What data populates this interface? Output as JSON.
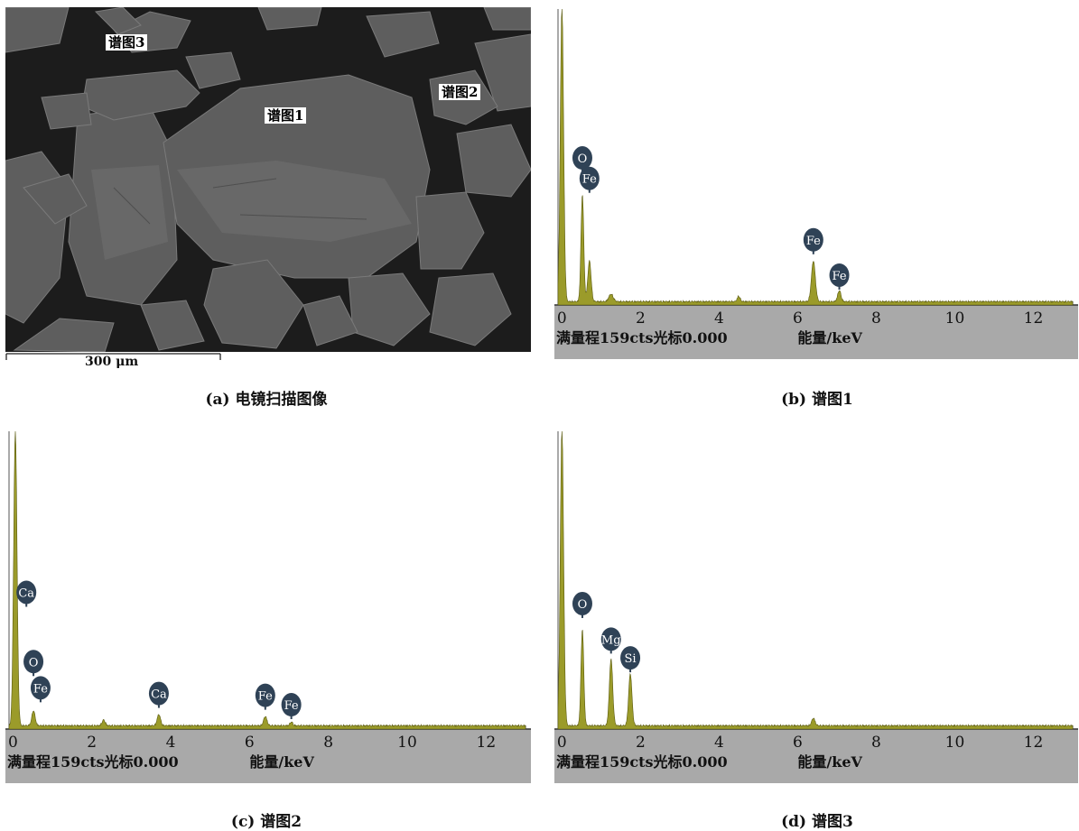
{
  "sem_panel": {
    "caption": "(a) 电镜扫描图像",
    "labels": [
      "谱图3",
      "谱图2",
      "谱图1"
    ],
    "scale_bar": "300 μm"
  },
  "chart_data": [
    {
      "type": "line",
      "caption": "(b) 谱图1",
      "footer_left": "满量程159cts光标0.000",
      "xlabel": "能量/keV",
      "xticks": [
        0,
        2,
        4,
        6,
        8,
        10,
        12
      ],
      "xlim": [
        -0.1,
        13.0
      ],
      "ylim": [
        0,
        159
      ],
      "peaks": [
        {
          "x": 0.0,
          "y": 159,
          "w": 0.06
        },
        {
          "x": 0.52,
          "y": 58,
          "w": 0.05
        },
        {
          "x": 0.7,
          "y": 22,
          "w": 0.06
        },
        {
          "x": 1.25,
          "y": 4,
          "w": 0.08
        },
        {
          "x": 4.5,
          "y": 3,
          "w": 0.05
        },
        {
          "x": 6.4,
          "y": 22,
          "w": 0.07
        },
        {
          "x": 7.06,
          "y": 6,
          "w": 0.06
        }
      ],
      "element_labels": [
        {
          "text": "O",
          "x": 0.52,
          "y": 79
        },
        {
          "text": "Fe",
          "x": 0.7,
          "y": 68
        },
        {
          "text": "Fe",
          "x": 6.4,
          "y": 35
        },
        {
          "text": "Fe",
          "x": 7.06,
          "y": 16
        }
      ],
      "color": "#9b9b2a"
    },
    {
      "type": "line",
      "caption": "(c) 谱图2",
      "footer_left": "满量程159cts光标0.000",
      "xlabel": "能量/keV",
      "xticks": [
        0,
        2,
        4,
        6,
        8,
        10,
        12
      ],
      "xlim": [
        -0.1,
        13.0
      ],
      "ylim": [
        0,
        159
      ],
      "peaks": [
        {
          "x": 0.06,
          "y": 159,
          "w": 0.06
        },
        {
          "x": 0.52,
          "y": 8,
          "w": 0.06
        },
        {
          "x": 2.3,
          "y": 3,
          "w": 0.06
        },
        {
          "x": 3.7,
          "y": 6,
          "w": 0.06
        },
        {
          "x": 6.4,
          "y": 5,
          "w": 0.06
        },
        {
          "x": 7.06,
          "y": 2,
          "w": 0.05
        }
      ],
      "element_labels": [
        {
          "text": "Ca",
          "x": 0.34,
          "y": 73
        },
        {
          "text": "O",
          "x": 0.52,
          "y": 36
        },
        {
          "text": "Fe",
          "x": 0.7,
          "y": 22
        },
        {
          "text": "Ca",
          "x": 3.7,
          "y": 19
        },
        {
          "text": "Fe",
          "x": 6.4,
          "y": 18
        },
        {
          "text": "Fe",
          "x": 7.06,
          "y": 13
        }
      ],
      "color": "#9b9b2a"
    },
    {
      "type": "line",
      "caption": "(d) 谱图3",
      "footer_left": "满量程159cts光标0.000",
      "xlabel": "能量/keV",
      "xticks": [
        0,
        2,
        4,
        6,
        8,
        10,
        12
      ],
      "xlim": [
        -0.1,
        13.0
      ],
      "ylim": [
        0,
        159
      ],
      "peaks": [
        {
          "x": 0.0,
          "y": 159,
          "w": 0.06
        },
        {
          "x": 0.52,
          "y": 52,
          "w": 0.05
        },
        {
          "x": 1.25,
          "y": 36,
          "w": 0.06
        },
        {
          "x": 1.74,
          "y": 28,
          "w": 0.06
        },
        {
          "x": 6.4,
          "y": 4,
          "w": 0.06
        }
      ],
      "element_labels": [
        {
          "text": "O",
          "x": 0.52,
          "y": 67
        },
        {
          "text": "Mg",
          "x": 1.25,
          "y": 48
        },
        {
          "text": "Si",
          "x": 1.74,
          "y": 38
        }
      ],
      "color": "#9b9b2a"
    }
  ]
}
